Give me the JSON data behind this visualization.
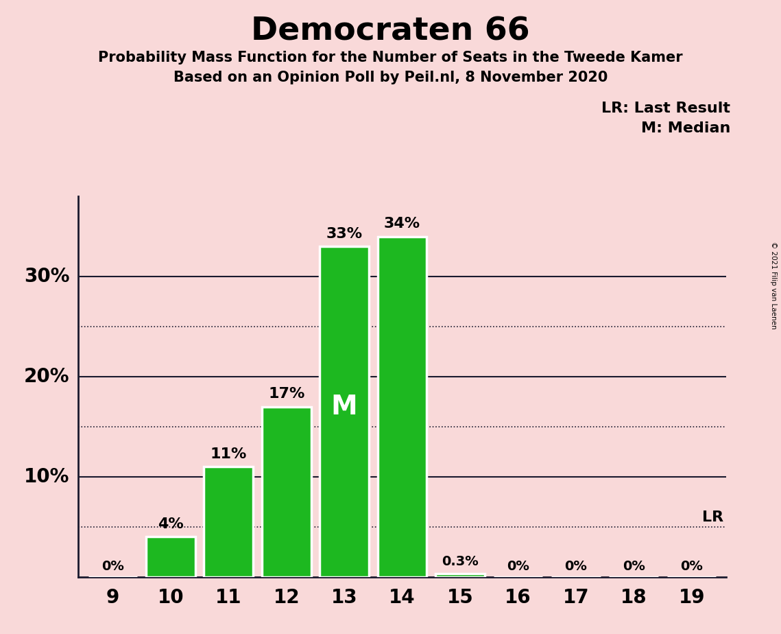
{
  "title": "Democraten 66",
  "subtitle1": "Probability Mass Function for the Number of Seats in the Tweede Kamer",
  "subtitle2": "Based on an Opinion Poll by Peil.nl, 8 November 2020",
  "categories": [
    9,
    10,
    11,
    12,
    13,
    14,
    15,
    16,
    17,
    18,
    19
  ],
  "values": [
    0.0,
    4.0,
    11.0,
    17.0,
    33.0,
    34.0,
    0.3,
    0.0,
    0.0,
    0.0,
    0.0
  ],
  "bar_labels": [
    "0%",
    "4%",
    "11%",
    "17%",
    "33%",
    "34%",
    "0.3%",
    "0%",
    "0%",
    "0%",
    "0%"
  ],
  "bar_color": "#1db820",
  "background_color": "#f9d9d9",
  "median_bar_index": 4,
  "lr_value": 5.0,
  "legend_text1": "LR: Last Result",
  "legend_text2": "M: Median",
  "copyright_text": "© 2021 Filip van Laenen",
  "ylim_max": 38,
  "solid_lines": [
    10,
    20,
    30
  ],
  "dotted_lines": [
    5,
    15,
    25
  ],
  "ytick_labels": [
    [
      10,
      "10%"
    ],
    [
      20,
      "20%"
    ],
    [
      30,
      "30%"
    ]
  ]
}
